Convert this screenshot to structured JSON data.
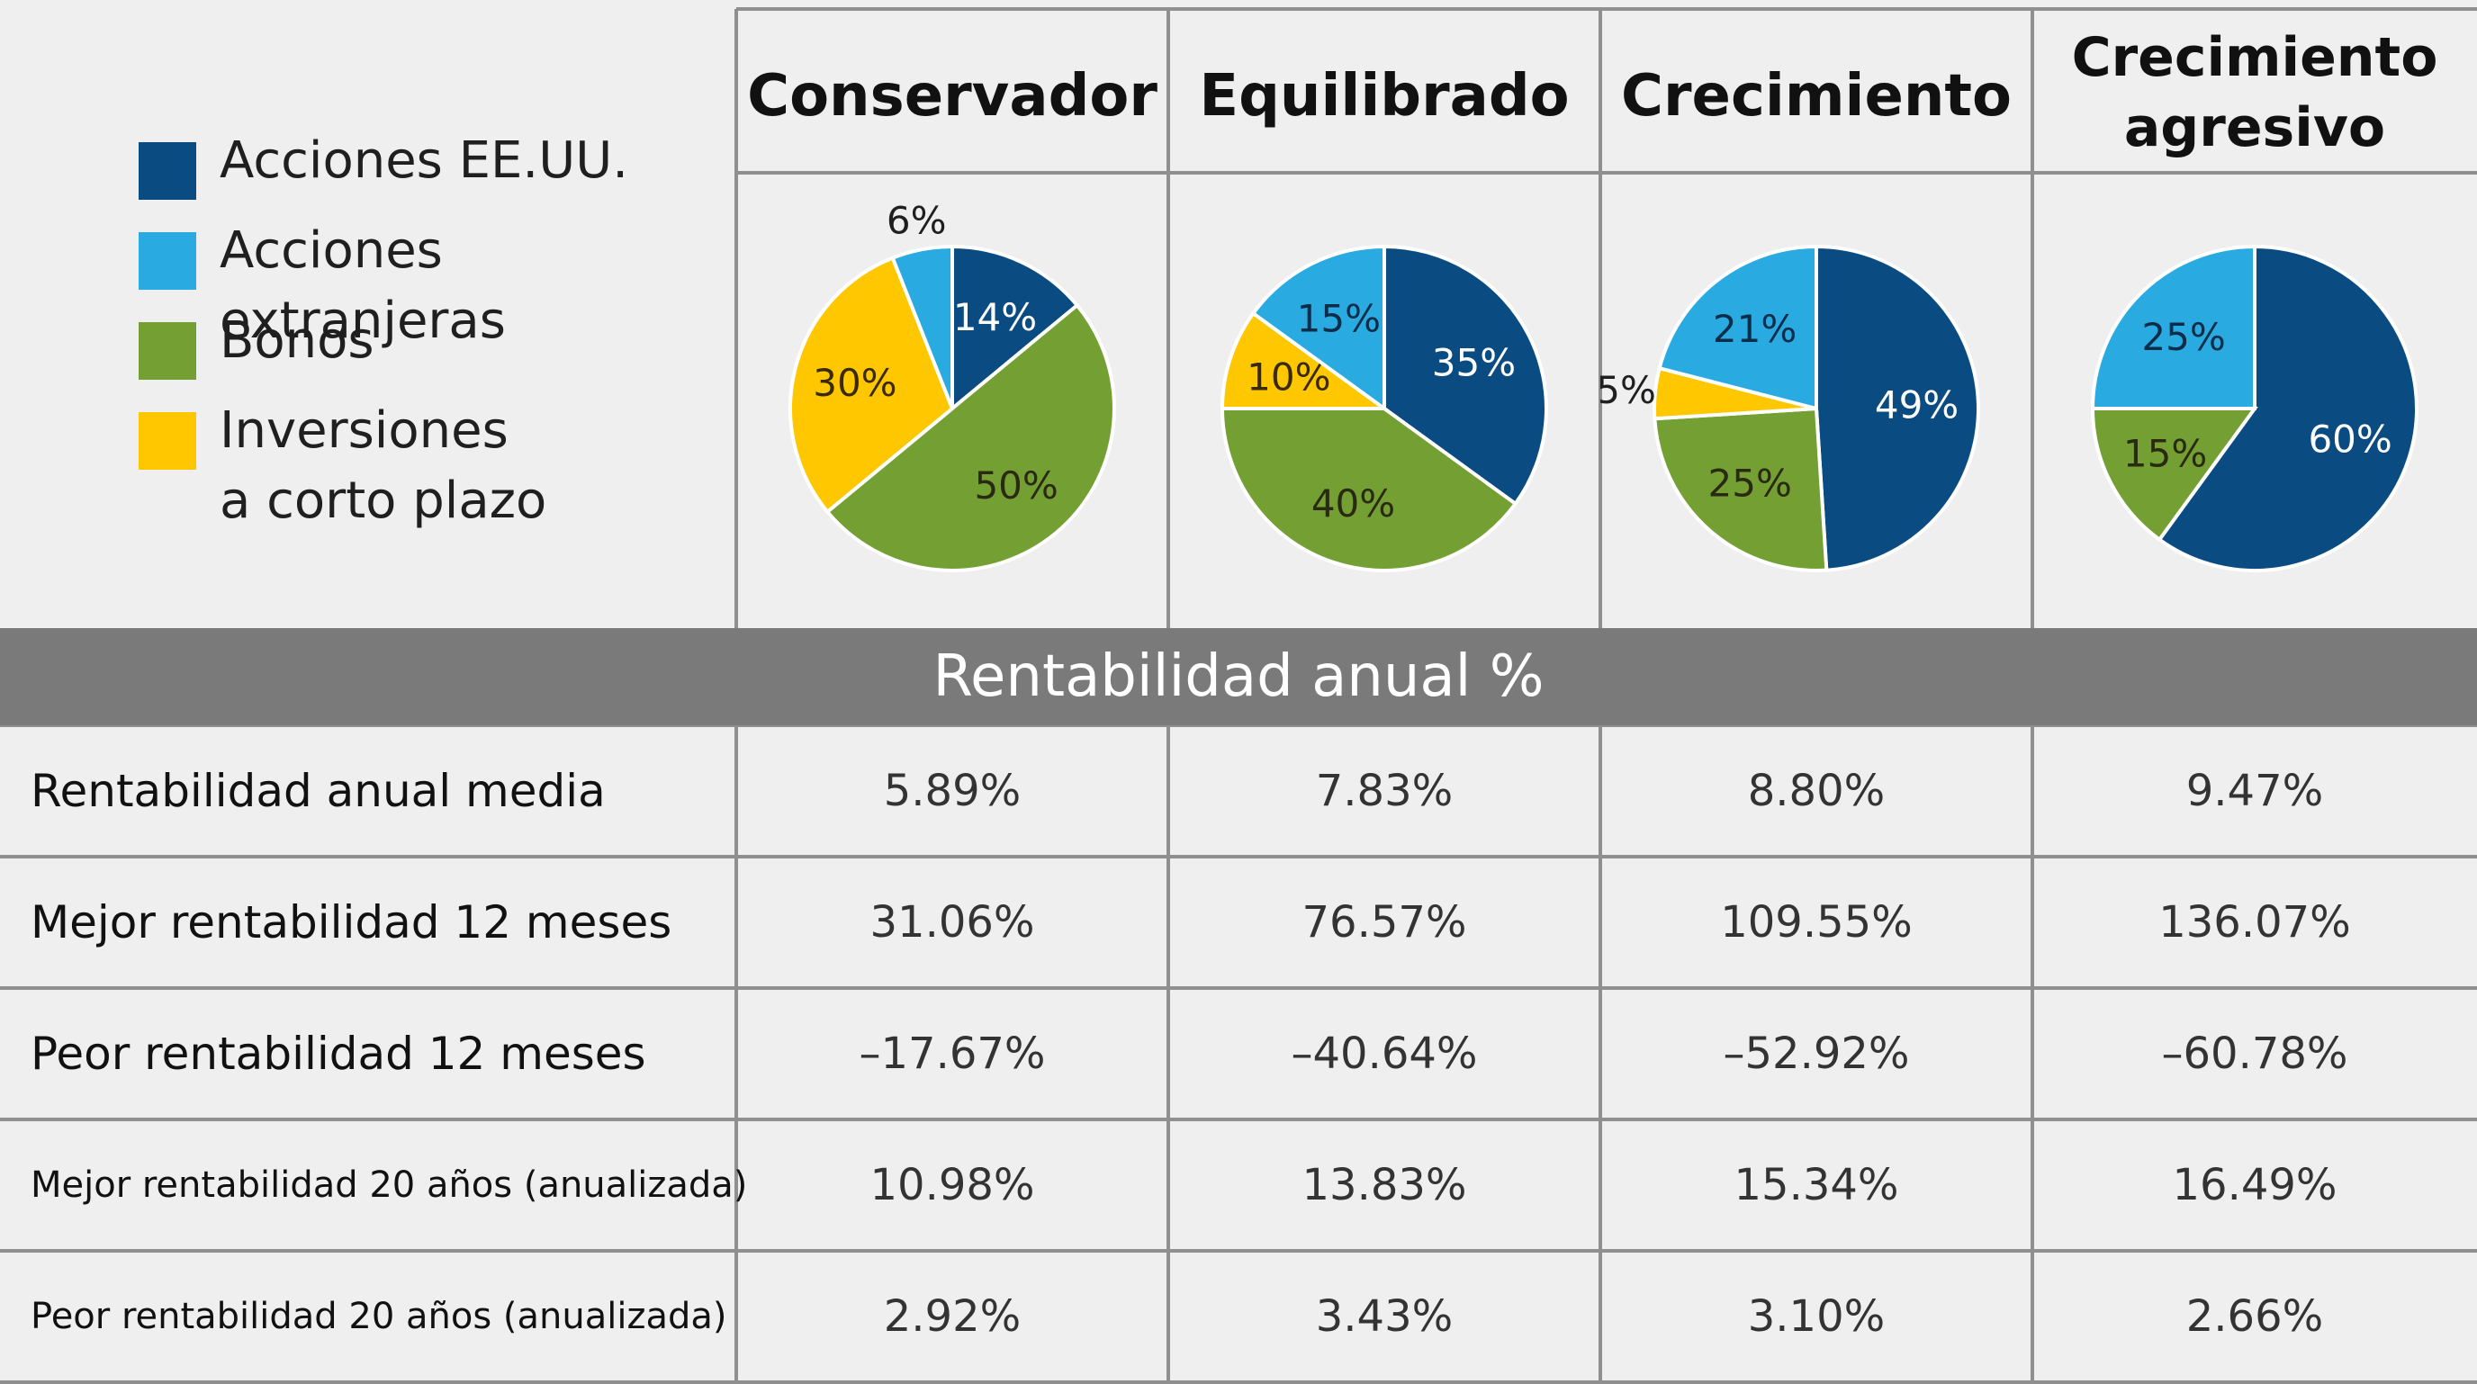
{
  "legend": [
    {
      "label": "Acciones EE.UU.",
      "color": "#0a4b82"
    },
    {
      "label": "Acciones extranjeras",
      "color": "#29abe2"
    },
    {
      "label": "Bonos",
      "color": "#74a033"
    },
    {
      "label": "Inversiones\na corto plazo",
      "color": "#ffc700"
    }
  ],
  "strategies": [
    {
      "title": "Conservador"
    },
    {
      "title": "Equilibrado"
    },
    {
      "title": "Crecimiento"
    },
    {
      "title": "Crecimiento\nagresivo"
    }
  ],
  "chart_data": {
    "type": "pie",
    "title": "",
    "legend": [
      "Acciones EE.UU.",
      "Acciones extranjeras",
      "Bonos",
      "Inversiones a corto plazo"
    ],
    "charts": [
      {
        "title": "Conservador",
        "slices": [
          {
            "category": "Acciones EE.UU.",
            "value": 14,
            "label": "14%"
          },
          {
            "category": "Bonos",
            "value": 50,
            "label": "50%"
          },
          {
            "category": "Inversiones a corto plazo",
            "value": 30,
            "label": "30%"
          },
          {
            "category": "Acciones extranjeras",
            "value": 6,
            "label": "6%"
          }
        ]
      },
      {
        "title": "Equilibrado",
        "slices": [
          {
            "category": "Acciones EE.UU.",
            "value": 35,
            "label": "35%"
          },
          {
            "category": "Bonos",
            "value": 40,
            "label": "40%"
          },
          {
            "category": "Inversiones a corto plazo",
            "value": 10,
            "label": "10%"
          },
          {
            "category": "Acciones extranjeras",
            "value": 15,
            "label": "15%"
          }
        ]
      },
      {
        "title": "Crecimiento",
        "slices": [
          {
            "category": "Acciones EE.UU.",
            "value": 49,
            "label": "49%"
          },
          {
            "category": "Bonos",
            "value": 25,
            "label": "25%"
          },
          {
            "category": "Inversiones a corto plazo",
            "value": 5,
            "label": "5%"
          },
          {
            "category": "Acciones extranjeras",
            "value": 21,
            "label": "21%"
          }
        ]
      },
      {
        "title": "Crecimiento agresivo",
        "slices": [
          {
            "category": "Acciones EE.UU.",
            "value": 60,
            "label": "60%"
          },
          {
            "category": "Bonos",
            "value": 15,
            "label": "15%"
          },
          {
            "category": "Acciones extranjeras",
            "value": 25,
            "label": "25%"
          }
        ]
      }
    ]
  },
  "returns_table": {
    "header": "Rentabilidad anual %",
    "rows": [
      {
        "label": "Rentabilidad anual media",
        "values": [
          "5.89%",
          "7.83%",
          "8.80%",
          "9.47%"
        ]
      },
      {
        "label": "Mejor rentabilidad 12 meses",
        "values": [
          "31.06%",
          "76.57%",
          "109.55%",
          "136.07%"
        ]
      },
      {
        "label": "Peor rentabilidad 12 meses",
        "values": [
          "–17.67%",
          "–40.64%",
          "–52.92%",
          "–60.78%"
        ]
      },
      {
        "label": "Mejor rentabilidad 20 años (anualizada)",
        "values": [
          "10.98%",
          "13.83%",
          "15.34%",
          "16.49%"
        ]
      },
      {
        "label": "Peor rentabilidad 20 años (anualizada)",
        "values": [
          "2.92%",
          "3.43%",
          "3.10%",
          "2.66%"
        ]
      }
    ]
  }
}
